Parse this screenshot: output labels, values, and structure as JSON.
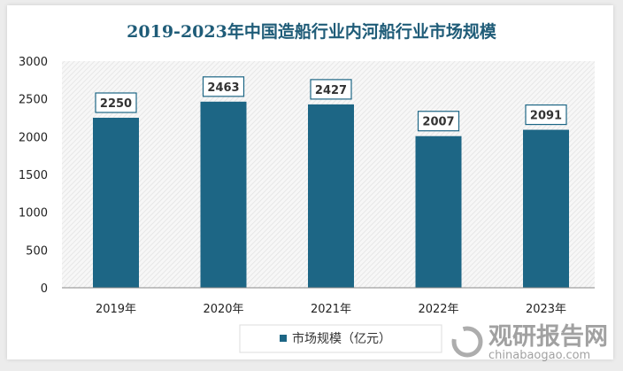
{
  "chart_data": {
    "type": "bar",
    "title": "2019-2023年中国造船行业内河船行业市场规模",
    "categories": [
      "2019年",
      "2020年",
      "2021年",
      "2022年",
      "2023年"
    ],
    "series": [
      {
        "name": "市场规模（亿元）",
        "values": [
          2250,
          2463,
          2427,
          2007,
          2091
        ]
      }
    ],
    "xlabel": "",
    "ylabel": "",
    "ylim": [
      0,
      3000
    ],
    "yticks": [
      "0",
      "500",
      "1000",
      "1500",
      "2000",
      "2500",
      "3000"
    ],
    "data_labels": [
      "2250",
      "2463",
      "2427",
      "2007",
      "2091"
    ],
    "legend": "bottom",
    "grid": false,
    "colors": {
      "bar": "#1d6685",
      "background_pattern": "#e4e4e4"
    }
  },
  "watermark": {
    "text": "观研报告网",
    "url_text": "chinabaogao.com"
  }
}
